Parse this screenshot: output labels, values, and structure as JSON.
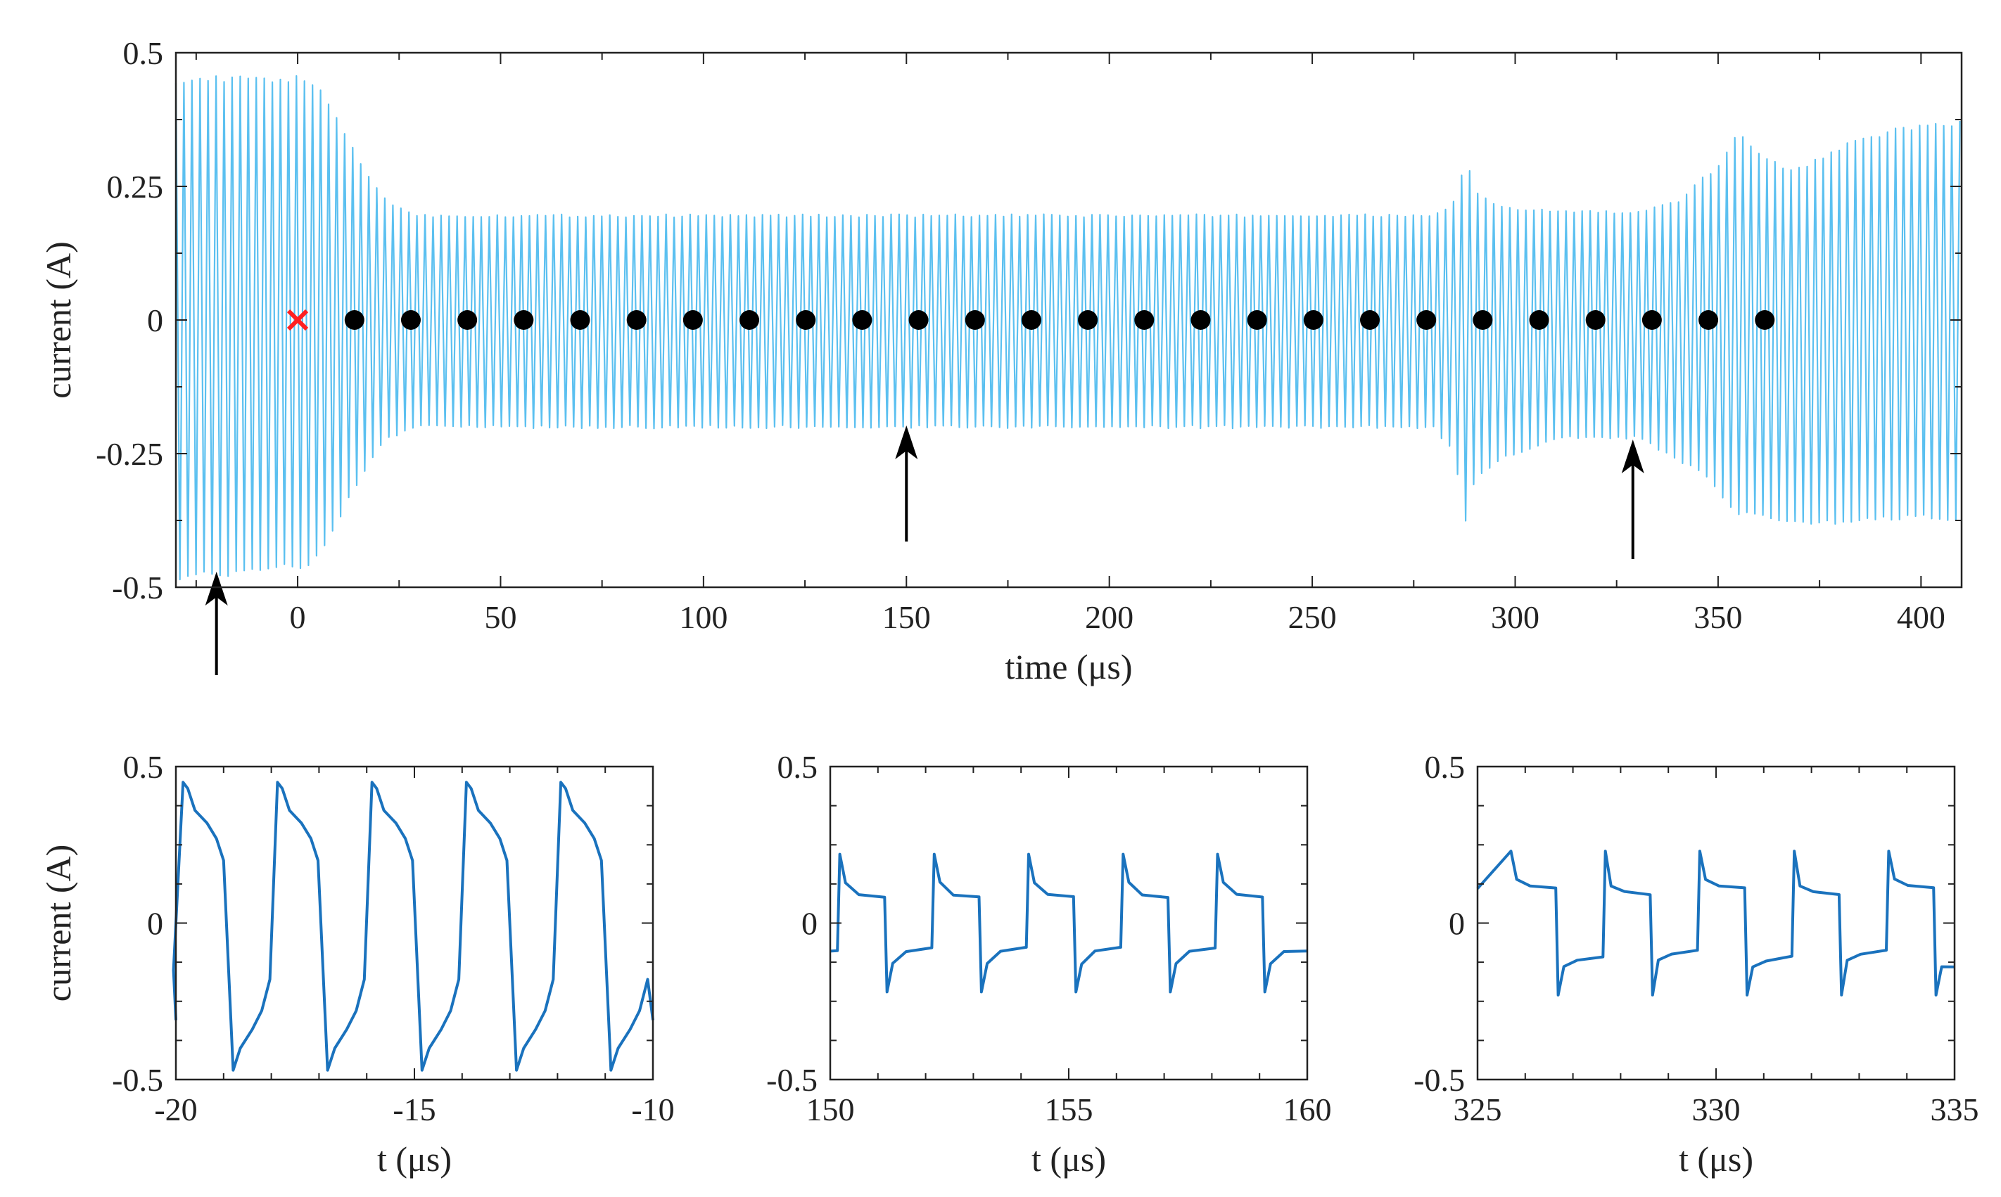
{
  "chart_data": [
    {
      "id": "main",
      "type": "line",
      "xlabel": "time (μs)",
      "ylabel": "current (A)",
      "xlim": [
        -30,
        410
      ],
      "ylim": [
        -0.5,
        0.5
      ],
      "xticks": [
        0,
        50,
        100,
        150,
        200,
        250,
        300,
        350,
        400
      ],
      "yticks": [
        -0.5,
        -0.25,
        0,
        0.25,
        0.5
      ],
      "ytick_labels": [
        "-0.5",
        "-0.25",
        "0",
        "0.25",
        "0.5"
      ],
      "line_color": "#5bc0f0",
      "period_us": 1.98,
      "envelope_upper": [
        [
          -30,
          0.45
        ],
        [
          3,
          0.45
        ],
        [
          8,
          0.4
        ],
        [
          15,
          0.3
        ],
        [
          22,
          0.22
        ],
        [
          30,
          0.195
        ],
        [
          280,
          0.195
        ],
        [
          285,
          0.22
        ],
        [
          288,
          0.3
        ],
        [
          290,
          0.24
        ],
        [
          296,
          0.21
        ],
        [
          305,
          0.205
        ],
        [
          330,
          0.2
        ],
        [
          340,
          0.22
        ],
        [
          350,
          0.29
        ],
        [
          355,
          0.35
        ],
        [
          362,
          0.3
        ],
        [
          368,
          0.28
        ],
        [
          375,
          0.3
        ],
        [
          385,
          0.34
        ],
        [
          398,
          0.36
        ],
        [
          410,
          0.37
        ]
      ],
      "envelope_lower": [
        [
          -30,
          -0.48
        ],
        [
          3,
          -0.46
        ],
        [
          8,
          -0.4
        ],
        [
          15,
          -0.3
        ],
        [
          22,
          -0.22
        ],
        [
          30,
          -0.2
        ],
        [
          280,
          -0.2
        ],
        [
          285,
          -0.25
        ],
        [
          288,
          -0.38
        ],
        [
          290,
          -0.3
        ],
        [
          296,
          -0.26
        ],
        [
          310,
          -0.22
        ],
        [
          330,
          -0.22
        ],
        [
          345,
          -0.28
        ],
        [
          355,
          -0.36
        ],
        [
          362,
          -0.37
        ],
        [
          375,
          -0.38
        ],
        [
          390,
          -0.37
        ],
        [
          410,
          -0.37
        ]
      ],
      "markers": {
        "start_x": 0,
        "dot_x": [
          14,
          27.9,
          41.8,
          55.7,
          69.6,
          83.5,
          97.4,
          111.3,
          125.2,
          139.1,
          153,
          166.9,
          180.8,
          194.7,
          208.6,
          222.5,
          236.4,
          250.3,
          264.2,
          278.1,
          292,
          305.9,
          319.8,
          333.7,
          347.6,
          361.5
        ],
        "y": 0,
        "start_color": "#ff2020",
        "dot_color": "#000000"
      },
      "arrows_x": [
        -20,
        150,
        329
      ]
    },
    {
      "id": "inset1",
      "type": "line",
      "xlabel": "t (μs)",
      "ylabel": "current (A)",
      "xlim": [
        -20,
        -10
      ],
      "ylim": [
        -0.5,
        0.5
      ],
      "xticks": [
        -20,
        -15,
        -10
      ],
      "yticks": [
        -0.5,
        0,
        0.5
      ],
      "ytick_labels": [
        "-0.5",
        "0",
        "0.5"
      ],
      "line_color": "#1a72bd",
      "period_us": 1.98,
      "first_rise_us": -19.85,
      "amp": 0.45,
      "fall_us": 0.9,
      "start_value": -0.31,
      "shape": "relaxation"
    },
    {
      "id": "inset2",
      "type": "line",
      "xlabel": "t (μs)",
      "ylabel": "",
      "xlim": [
        150,
        160
      ],
      "ylim": [
        -0.5,
        0.5
      ],
      "xticks": [
        150,
        155,
        160
      ],
      "yticks": [
        -0.5,
        0,
        0.5
      ],
      "ytick_labels": [
        "-0.5",
        "0",
        "0.5"
      ],
      "line_color": "#1a72bd",
      "period_us": 1.98,
      "first_rise_us": 150.2,
      "amp": 0.09,
      "spike": 0.22,
      "start_value": -0.09,
      "shape": "square"
    },
    {
      "id": "inset3",
      "type": "line",
      "xlabel": "t (μs)",
      "ylabel": "",
      "xlim": [
        325,
        335
      ],
      "ylim": [
        -0.5,
        0.5
      ],
      "xticks": [
        325,
        330,
        335
      ],
      "yticks": [
        -0.5,
        0,
        0.5
      ],
      "ytick_labels": [
        "-0.5",
        "0",
        "0.5"
      ],
      "line_color": "#1a72bd",
      "period_us": 1.98,
      "first_rise_us": 325.7,
      "amp": 0.11,
      "spike": 0.23,
      "start_value": 0.11,
      "shape": "square_drift"
    }
  ]
}
